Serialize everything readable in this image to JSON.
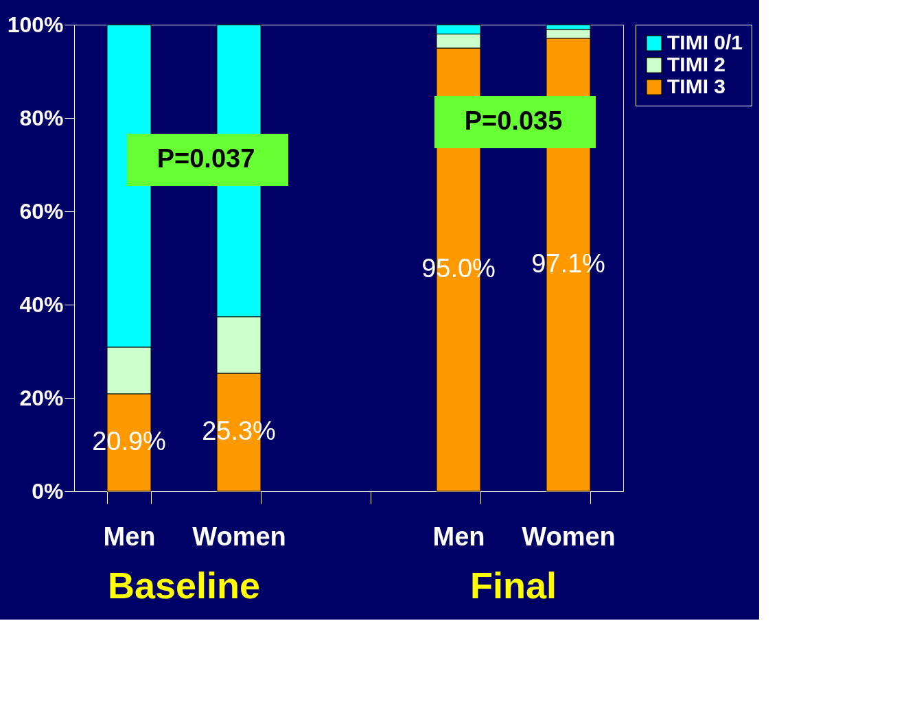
{
  "chart_data": {
    "type": "bar",
    "stacked": true,
    "categories": [
      "Men",
      "Women",
      null,
      "Men",
      "Women"
    ],
    "series": [
      {
        "name": "TIMI 3",
        "color": "#ff9900",
        "values": [
          20.9,
          25.3,
          null,
          95.0,
          97.1
        ],
        "value_labels": [
          "20.9%",
          "25.3%",
          null,
          "95.0%",
          "97.1%"
        ]
      },
      {
        "name": "TIMI 2",
        "color": "#ccffcc",
        "values": [
          10.0,
          12.1,
          null,
          3.0,
          1.9
        ]
      },
      {
        "name": "TIMI 0/1",
        "color": "#00ffff",
        "values": [
          69.1,
          62.6,
          null,
          2.0,
          1.0
        ]
      }
    ],
    "ylim": [
      0,
      100
    ],
    "yticks": [
      {
        "value": 0,
        "label": "0%"
      },
      {
        "value": 20,
        "label": "20%"
      },
      {
        "value": 40,
        "label": "40%"
      },
      {
        "value": 60,
        "label": "60%"
      },
      {
        "value": 80,
        "label": "80%"
      },
      {
        "value": 100,
        "label": "100%"
      }
    ],
    "grid": false,
    "legend": "right",
    "annotations": [
      "P=0.037",
      "P=0.035",
      "Baseline",
      "Final"
    ]
  }
}
